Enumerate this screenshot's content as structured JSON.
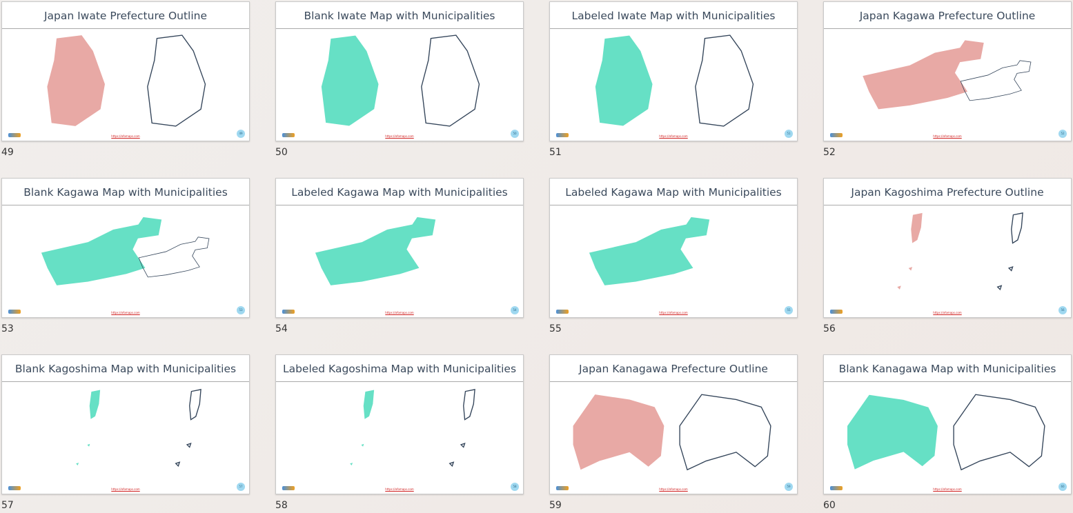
{
  "slides": [
    {
      "title": "Japan Iwate Prefecture Outline",
      "number": 49,
      "url": "https://ofomaps.com"
    },
    {
      "title": "Blank Iwate Map with Municipalities",
      "number": 50,
      "url": "https://ofomaps.com"
    },
    {
      "title": "Labeled Iwate Map with Municipalities",
      "number": 51,
      "url": "https://ofomaps.com"
    },
    {
      "title": "Japan Kagawa Prefecture Outline",
      "number": 52,
      "url": "https://ofomaps.com"
    },
    {
      "title": "Blank Kagawa Map with Municipalities",
      "number": 53,
      "url": "https://ofomaps.com"
    },
    {
      "title": "Labeled Kagawa Map with Municipalities",
      "number": 54,
      "url": "https://ofomaps.com"
    },
    {
      "title": "Labeled Kagawa Map with Municipalities",
      "number": 55,
      "url": "https://ofomaps.com"
    },
    {
      "title": "Japan Kagoshima Prefecture Outline",
      "number": 56,
      "url": "https://ofomaps.com"
    },
    {
      "title": "Blank Kagoshima Map with Municipalities",
      "number": 57,
      "url": "https://ofomaps.com"
    },
    {
      "title": "Labeled Kagoshima Map with Municipalities",
      "number": 58,
      "url": "https://ofomaps.com"
    },
    {
      "title": "Japan Kanagawa Prefecture Outline",
      "number": 59,
      "url": "https://ofomaps.com"
    },
    {
      "title": "Blank Kanagawa Map with Municipalities",
      "number": 60,
      "url": "https://ofomaps.com"
    }
  ]
}
